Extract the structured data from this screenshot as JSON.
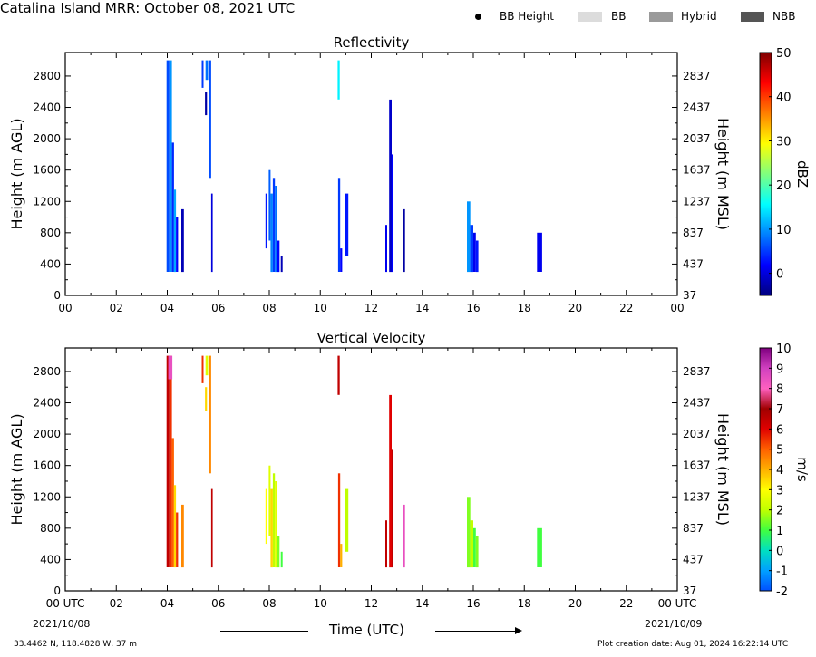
{
  "header": {
    "title": "Catalina Island MRR:  October 08, 2021 UTC",
    "legend": [
      {
        "label": "BB Height",
        "marker": "dot",
        "color": "#000000"
      },
      {
        "label": "BB",
        "marker": "box",
        "color": "#dcdcdc"
      },
      {
        "label": "Hybrid",
        "marker": "box",
        "color": "#9a9a9a"
      },
      {
        "label": "NBB",
        "marker": "box",
        "color": "#555555"
      }
    ]
  },
  "footer": {
    "location": "33.4462 N, 118.4828 W, 37 m",
    "creation_date": "Plot creation date: Aug 01, 2024 16:22:14 UTC",
    "start_date": "2021/10/08",
    "end_date": "2021/10/09",
    "time_label": "Time (UTC)"
  },
  "chart_data": [
    {
      "type": "heatmap",
      "title": "Reflectivity",
      "ylabel": "Height (m AGL)",
      "y2label": "Height (m MSL)",
      "xlim": [
        0,
        24
      ],
      "ylim": [
        0,
        3100
      ],
      "x_ticks": [
        "00",
        "02",
        "04",
        "06",
        "08",
        "10",
        "12",
        "14",
        "16",
        "18",
        "20",
        "22",
        "00"
      ],
      "y_ticks": [
        0,
        400,
        800,
        1200,
        1600,
        2000,
        2400,
        2800
      ],
      "y2_ticks": [
        "37",
        "437",
        "837",
        "1237",
        "1637",
        "2037",
        "2437",
        "2837"
      ],
      "colorbar": {
        "label": "dBZ",
        "min": -5,
        "max": 50,
        "ticks": [
          0,
          10,
          20,
          30,
          40,
          50
        ],
        "colors": [
          "#00007f",
          "#0000ff",
          "#007fff",
          "#00ffff",
          "#7fff7f",
          "#ffff00",
          "#ff7f00",
          "#ff0000",
          "#7f0000"
        ]
      },
      "echoes": [
        {
          "t0": 3.97,
          "t1": 4.08,
          "ybot": 300,
          "ytop": 3000,
          "value": 6
        },
        {
          "t0": 4.08,
          "t1": 4.18,
          "ybot": 300,
          "ytop": 3000,
          "value": 10
        },
        {
          "t0": 4.18,
          "t1": 4.26,
          "ybot": 300,
          "ytop": 1950,
          "value": 4
        },
        {
          "t0": 4.26,
          "t1": 4.34,
          "ybot": 300,
          "ytop": 1350,
          "value": 11
        },
        {
          "t0": 4.34,
          "t1": 4.42,
          "ybot": 300,
          "ytop": 1000,
          "value": 2
        },
        {
          "t0": 4.55,
          "t1": 4.65,
          "ybot": 300,
          "ytop": 1100,
          "value": -2
        },
        {
          "t0": 5.35,
          "t1": 5.42,
          "ybot": 2650,
          "ytop": 3000,
          "value": 5
        },
        {
          "t0": 5.48,
          "t1": 5.56,
          "ybot": 2300,
          "ytop": 2600,
          "value": -3
        },
        {
          "t0": 5.5,
          "t1": 5.6,
          "ybot": 2750,
          "ytop": 3000,
          "value": 8
        },
        {
          "t0": 5.62,
          "t1": 5.72,
          "ybot": 1500,
          "ytop": 3000,
          "value": 6
        },
        {
          "t0": 5.72,
          "t1": 5.78,
          "ybot": 300,
          "ytop": 1300,
          "value": 0
        },
        {
          "t0": 7.85,
          "t1": 7.92,
          "ybot": 600,
          "ytop": 1300,
          "value": 3
        },
        {
          "t0": 7.98,
          "t1": 8.05,
          "ybot": 700,
          "ytop": 1600,
          "value": 7
        },
        {
          "t0": 8.05,
          "t1": 8.14,
          "ybot": 300,
          "ytop": 1300,
          "value": 9
        },
        {
          "t0": 8.14,
          "t1": 8.22,
          "ybot": 300,
          "ytop": 1500,
          "value": 5
        },
        {
          "t0": 8.22,
          "t1": 8.32,
          "ybot": 300,
          "ytop": 1400,
          "value": 8
        },
        {
          "t0": 8.32,
          "t1": 8.4,
          "ybot": 300,
          "ytop": 700,
          "value": 2
        },
        {
          "t0": 8.45,
          "t1": 8.52,
          "ybot": 300,
          "ytop": 500,
          "value": -2
        },
        {
          "t0": 10.68,
          "t1": 10.76,
          "ybot": 2500,
          "ytop": 3000,
          "value": 15
        },
        {
          "t0": 10.7,
          "t1": 10.78,
          "ybot": 300,
          "ytop": 1500,
          "value": 5
        },
        {
          "t0": 10.78,
          "t1": 10.86,
          "ybot": 300,
          "ytop": 600,
          "value": 2
        },
        {
          "t0": 10.98,
          "t1": 11.1,
          "ybot": 500,
          "ytop": 1300,
          "value": 3
        },
        {
          "t0": 12.55,
          "t1": 12.62,
          "ybot": 300,
          "ytop": 900,
          "value": 1
        },
        {
          "t0": 12.7,
          "t1": 12.8,
          "ybot": 300,
          "ytop": 2500,
          "value": -1
        },
        {
          "t0": 12.8,
          "t1": 12.86,
          "ybot": 300,
          "ytop": 1800,
          "value": 2
        },
        {
          "t0": 13.25,
          "t1": 13.32,
          "ybot": 300,
          "ytop": 1100,
          "value": -3
        },
        {
          "t0": 15.75,
          "t1": 15.88,
          "ybot": 300,
          "ytop": 1200,
          "value": 10
        },
        {
          "t0": 15.88,
          "t1": 16.0,
          "ybot": 300,
          "ytop": 900,
          "value": 5
        },
        {
          "t0": 16.0,
          "t1": 16.1,
          "ybot": 300,
          "ytop": 800,
          "value": 1
        },
        {
          "t0": 16.1,
          "t1": 16.2,
          "ybot": 300,
          "ytop": 700,
          "value": 3
        },
        {
          "t0": 18.5,
          "t1": 18.7,
          "ybot": 300,
          "ytop": 800,
          "value": 1
        }
      ]
    },
    {
      "type": "heatmap",
      "title": "Vertical Velocity",
      "ylabel": "Height (m AGL)",
      "y2label": "Height (m MSL)",
      "xlim": [
        0,
        24
      ],
      "ylim": [
        0,
        3100
      ],
      "x_ticks": [
        "00 UTC",
        "02",
        "04",
        "06",
        "08",
        "10",
        "12",
        "14",
        "16",
        "18",
        "20",
        "22",
        "00 UTC"
      ],
      "y_ticks": [
        0,
        400,
        800,
        1200,
        1600,
        2000,
        2400,
        2800
      ],
      "y2_ticks": [
        "37",
        "437",
        "837",
        "1237",
        "1637",
        "2037",
        "2437",
        "2837"
      ],
      "colorbar": {
        "label": "m/s",
        "min": -2,
        "max": 10,
        "ticks": [
          -2,
          -1,
          0,
          1,
          2,
          3,
          4,
          5,
          6,
          7,
          8,
          9,
          10
        ],
        "colors": [
          "#0050ff",
          "#00a0ff",
          "#00e0c0",
          "#40ff40",
          "#c0ff00",
          "#ffff00",
          "#ffb000",
          "#ff6000",
          "#e00000",
          "#a00000",
          "#ff60c0",
          "#d040c0",
          "#800080"
        ]
      },
      "echoes": [
        {
          "t0": 3.97,
          "t1": 4.08,
          "ybot": 300,
          "ytop": 3000,
          "value": 6.5
        },
        {
          "t0": 4.08,
          "t1": 4.18,
          "ybot": 300,
          "ytop": 3000,
          "value": 5.5
        },
        {
          "t0": 4.04,
          "t1": 4.2,
          "ybot": 2700,
          "ytop": 3000,
          "value": 8.5
        },
        {
          "t0": 4.18,
          "t1": 4.26,
          "ybot": 300,
          "ytop": 1950,
          "value": 5
        },
        {
          "t0": 4.26,
          "t1": 4.34,
          "ybot": 300,
          "ytop": 1350,
          "value": 3.5
        },
        {
          "t0": 4.34,
          "t1": 4.42,
          "ybot": 300,
          "ytop": 1000,
          "value": 5.5
        },
        {
          "t0": 4.55,
          "t1": 4.65,
          "ybot": 300,
          "ytop": 1100,
          "value": 4.5
        },
        {
          "t0": 5.35,
          "t1": 5.42,
          "ybot": 2650,
          "ytop": 3000,
          "value": 5.5
        },
        {
          "t0": 5.48,
          "t1": 5.56,
          "ybot": 2300,
          "ytop": 2600,
          "value": 3.5
        },
        {
          "t0": 5.5,
          "t1": 5.6,
          "ybot": 2750,
          "ytop": 3000,
          "value": 2.5
        },
        {
          "t0": 5.62,
          "t1": 5.72,
          "ybot": 1500,
          "ytop": 3000,
          "value": 4.5
        },
        {
          "t0": 5.72,
          "t1": 5.78,
          "ybot": 300,
          "ytop": 1300,
          "value": 6.5
        },
        {
          "t0": 7.85,
          "t1": 7.92,
          "ybot": 600,
          "ytop": 1300,
          "value": 3
        },
        {
          "t0": 7.98,
          "t1": 8.05,
          "ybot": 700,
          "ytop": 1600,
          "value": 2.5
        },
        {
          "t0": 8.05,
          "t1": 8.14,
          "ybot": 300,
          "ytop": 1300,
          "value": 3.5
        },
        {
          "t0": 8.14,
          "t1": 8.22,
          "ybot": 300,
          "ytop": 1500,
          "value": 2
        },
        {
          "t0": 8.22,
          "t1": 8.32,
          "ybot": 300,
          "ytop": 1400,
          "value": 2.5
        },
        {
          "t0": 8.32,
          "t1": 8.4,
          "ybot": 300,
          "ytop": 700,
          "value": 1.5
        },
        {
          "t0": 8.45,
          "t1": 8.52,
          "ybot": 300,
          "ytop": 500,
          "value": 1
        },
        {
          "t0": 10.68,
          "t1": 10.76,
          "ybot": 2500,
          "ytop": 3000,
          "value": 6.5
        },
        {
          "t0": 10.7,
          "t1": 10.78,
          "ybot": 300,
          "ytop": 1500,
          "value": 5.5
        },
        {
          "t0": 10.78,
          "t1": 10.86,
          "ybot": 300,
          "ytop": 600,
          "value": 4
        },
        {
          "t0": 10.98,
          "t1": 11.1,
          "ybot": 500,
          "ytop": 1300,
          "value": 2
        },
        {
          "t0": 12.55,
          "t1": 12.62,
          "ybot": 300,
          "ytop": 900,
          "value": 6.5
        },
        {
          "t0": 12.7,
          "t1": 12.8,
          "ybot": 300,
          "ytop": 2500,
          "value": 6
        },
        {
          "t0": 12.8,
          "t1": 12.86,
          "ybot": 300,
          "ytop": 1800,
          "value": 6.5
        },
        {
          "t0": 13.25,
          "t1": 13.32,
          "ybot": 300,
          "ytop": 1100,
          "value": 8.5
        },
        {
          "t0": 15.75,
          "t1": 15.88,
          "ybot": 300,
          "ytop": 1200,
          "value": 1.5
        },
        {
          "t0": 15.88,
          "t1": 16.0,
          "ybot": 300,
          "ytop": 900,
          "value": 2
        },
        {
          "t0": 16.0,
          "t1": 16.1,
          "ybot": 300,
          "ytop": 800,
          "value": 1
        },
        {
          "t0": 16.1,
          "t1": 16.2,
          "ybot": 300,
          "ytop": 700,
          "value": 1.5
        },
        {
          "t0": 18.5,
          "t1": 18.7,
          "ybot": 300,
          "ytop": 800,
          "value": 1
        }
      ]
    }
  ]
}
